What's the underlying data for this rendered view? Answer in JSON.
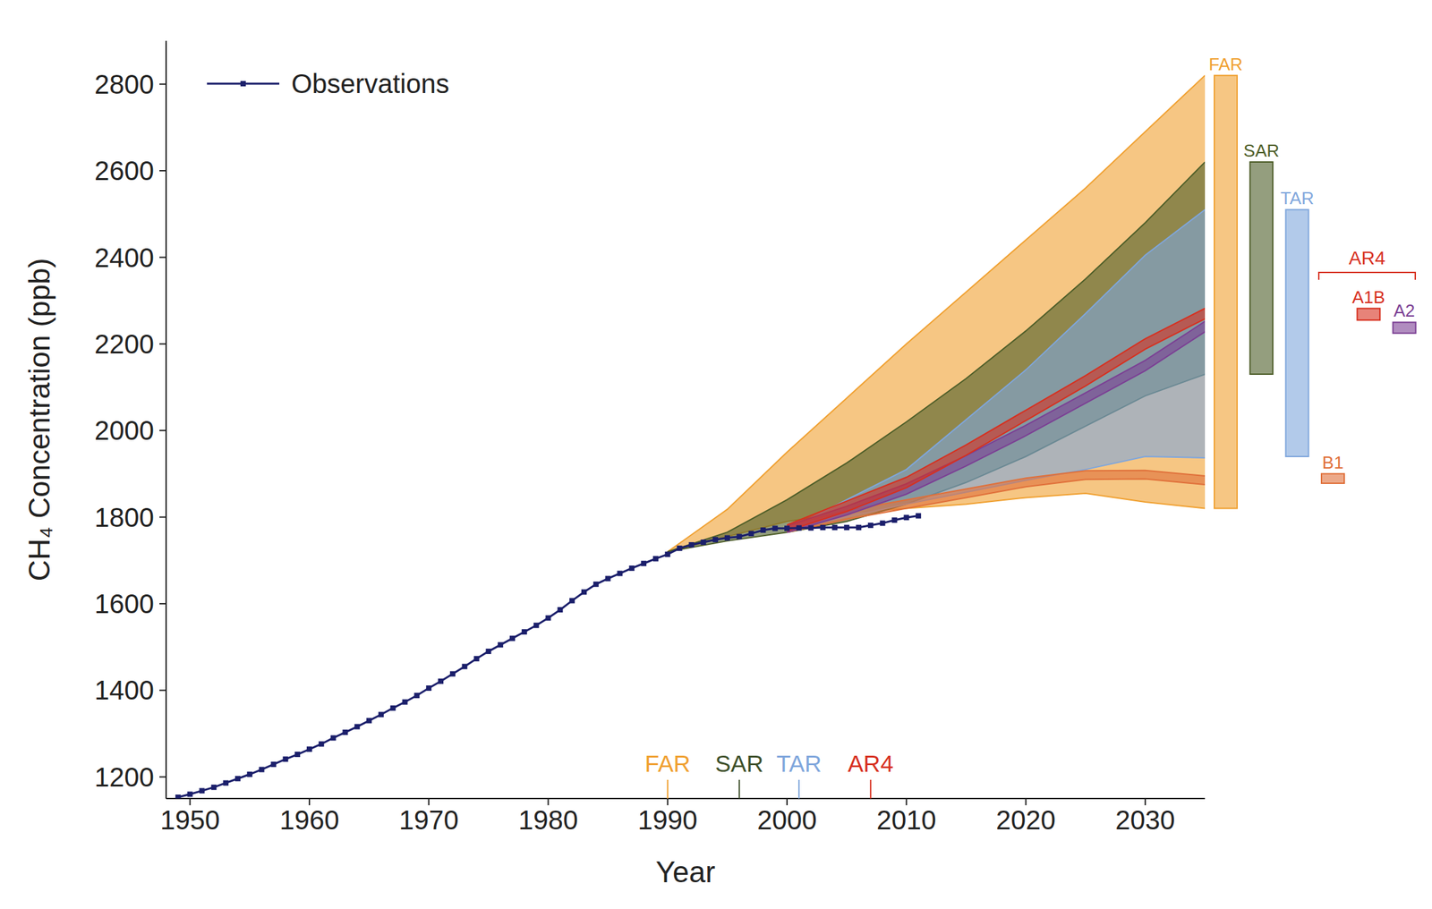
{
  "chart_data": {
    "type": "line",
    "x_label": "Year",
    "y_label": "CH₄ Concentration (ppb)",
    "xlim": [
      1948,
      2035
    ],
    "xticks": [
      1950,
      1960,
      1970,
      1980,
      1990,
      2000,
      2010,
      2020,
      2030
    ],
    "ylim": [
      1150,
      2900
    ],
    "yticks": [
      1200,
      1400,
      1600,
      1800,
      2000,
      2200,
      2400,
      2600,
      2800
    ],
    "grid": false,
    "legend": "upper left",
    "series": [
      {
        "name": "FAR",
        "type": "band",
        "color": "#f0a030",
        "x": [
          1990,
          1995,
          2000,
          2005,
          2010,
          2015,
          2020,
          2025,
          2030,
          2035
        ],
        "low": [
          1720,
          1755,
          1790,
          1810,
          1820,
          1830,
          1845,
          1855,
          1835,
          1820
        ],
        "high": [
          1720,
          1818,
          1950,
          2075,
          2200,
          2320,
          2440,
          2560,
          2690,
          2820
        ]
      },
      {
        "name": "SAR",
        "type": "band",
        "color": "#4d5d28",
        "x": [
          1990,
          1995,
          2000,
          2005,
          2010,
          2015,
          2020,
          2025,
          2030,
          2035
        ],
        "low": [
          1720,
          1745,
          1765,
          1790,
          1830,
          1880,
          1940,
          2010,
          2080,
          2130
        ],
        "high": [
          1720,
          1765,
          1840,
          1925,
          2020,
          2120,
          2230,
          2350,
          2480,
          2620
        ]
      },
      {
        "name": "TAR",
        "type": "band",
        "color": "#7fa6dc",
        "x": [
          2000,
          2010,
          2020,
          2025,
          2030,
          2035
        ],
        "low": [
          1770,
          1830,
          1885,
          1910,
          1940,
          1937
        ],
        "high": [
          1770,
          1910,
          2140,
          2270,
          2405,
          2510
        ]
      },
      {
        "name": "B1",
        "type": "band",
        "color": "#e0703a",
        "x": [
          2000,
          2005,
          2010,
          2015,
          2020,
          2025,
          2030,
          2035
        ],
        "low": [
          1765,
          1795,
          1820,
          1845,
          1870,
          1887,
          1888,
          1875
        ],
        "high": [
          1780,
          1815,
          1840,
          1865,
          1890,
          1907,
          1908,
          1895
        ]
      },
      {
        "name": "A2",
        "type": "band",
        "color": "#7b3f94",
        "x": [
          2000,
          2005,
          2010,
          2015,
          2020,
          2025,
          2030,
          2035
        ],
        "low": [
          1765,
          1805,
          1853,
          1918,
          1988,
          2063,
          2138,
          2228
        ],
        "high": [
          1780,
          1825,
          1877,
          1942,
          2012,
          2087,
          2162,
          2252
        ]
      },
      {
        "name": "A1B",
        "type": "band",
        "color": "#d7301f",
        "x": [
          2000,
          2005,
          2010,
          2015,
          2020,
          2025,
          2030,
          2035
        ],
        "low": [
          1768,
          1813,
          1868,
          1943,
          2023,
          2103,
          2188,
          2258
        ],
        "high": [
          1782,
          1837,
          1892,
          1967,
          2047,
          2127,
          2212,
          2282
        ]
      },
      {
        "name": "Observations",
        "type": "line",
        "color": "#1b1f6b",
        "marker": "square",
        "x": [
          1949,
          1950,
          1951,
          1952,
          1953,
          1954,
          1955,
          1956,
          1957,
          1958,
          1959,
          1960,
          1961,
          1962,
          1963,
          1964,
          1965,
          1966,
          1967,
          1968,
          1969,
          1970,
          1971,
          1972,
          1973,
          1974,
          1975,
          1976,
          1977,
          1978,
          1979,
          1980,
          1981,
          1982,
          1983,
          1984,
          1985,
          1986,
          1987,
          1988,
          1989,
          1990,
          1991,
          1992,
          1993,
          1994,
          1995,
          1996,
          1997,
          1998,
          1999,
          2000,
          2001,
          2002,
          2003,
          2004,
          2005,
          2006,
          2007,
          2008,
          2009,
          2010,
          2011
        ],
        "values": [
          1153,
          1160,
          1168,
          1176,
          1186,
          1196,
          1206,
          1217,
          1229,
          1241,
          1252,
          1264,
          1276,
          1290,
          1303,
          1316,
          1330,
          1344,
          1359,
          1373,
          1388,
          1405,
          1421,
          1438,
          1455,
          1473,
          1490,
          1505,
          1520,
          1535,
          1550,
          1567,
          1586,
          1607,
          1627,
          1645,
          1658,
          1670,
          1682,
          1693,
          1704,
          1714,
          1728,
          1736,
          1742,
          1748,
          1752,
          1755,
          1762,
          1770,
          1774,
          1774,
          1775,
          1775,
          1776,
          1776,
          1776,
          1776,
          1781,
          1786,
          1793,
          1799,
          1803
        ]
      }
    ],
    "report_dates": [
      {
        "label": "FAR",
        "x": 1990,
        "color": "#f0a030"
      },
      {
        "label": "SAR",
        "x": 1996,
        "color": "#3d4f2a"
      },
      {
        "label": "TAR",
        "x": 2001,
        "color": "#7fa6dc"
      },
      {
        "label": "AR4",
        "x": 2007,
        "color": "#d7301f"
      }
    ],
    "side_bars": [
      {
        "label": "FAR",
        "low": 1820,
        "high": 2820,
        "color": "#f0a030"
      },
      {
        "label": "SAR",
        "low": 2130,
        "high": 2620,
        "color": "#4d5d28"
      },
      {
        "label": "TAR",
        "low": 1940,
        "high": 2510,
        "color": "#7fa6dc"
      },
      {
        "label": "B1",
        "low": 1878,
        "high": 1900,
        "color": "#e0703a"
      },
      {
        "label": "A1B",
        "low": 2255,
        "high": 2282,
        "color": "#d7301f"
      },
      {
        "label": "A2",
        "low": 2225,
        "high": 2250,
        "color": "#7b3f94"
      }
    ],
    "side_groups": [
      {
        "label": "AR4",
        "members": [
          "B1",
          "A1B",
          "A2"
        ],
        "color": "#d7301f"
      }
    ]
  }
}
